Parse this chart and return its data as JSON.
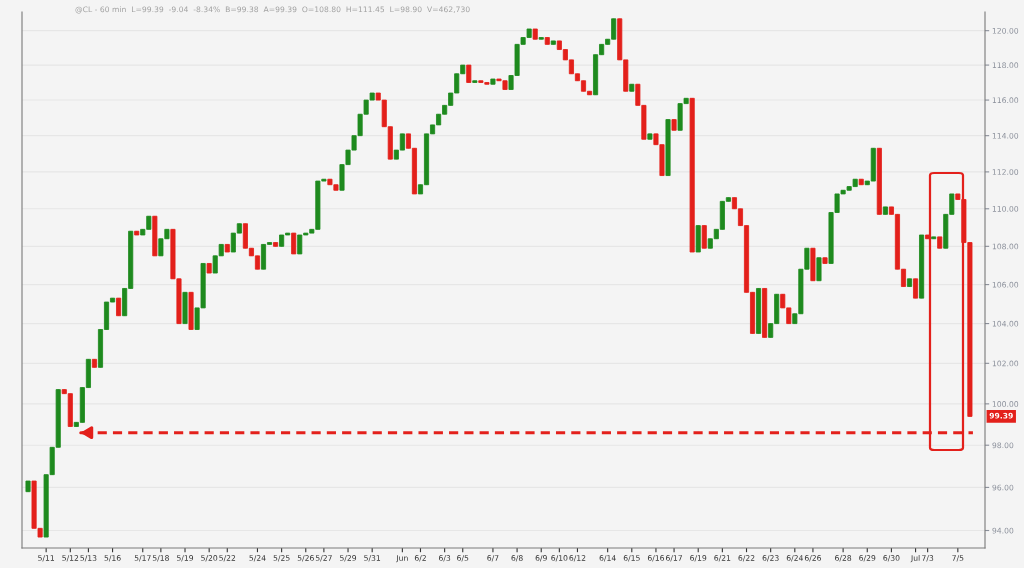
{
  "chart_data": {
    "type": "candlestick",
    "subtitle": "@CL - 60 min  L=99.39  -9.04  -8.34%  B=99.38  A=99.39  O=108.80  H=111.45  L=98.90  V=462,730",
    "categories": [
      null,
      null,
      null,
      "5/11",
      null,
      null,
      null,
      "5/12",
      null,
      null,
      "5/13",
      null,
      null,
      null,
      "5/16",
      null,
      null,
      null,
      null,
      "5/17",
      null,
      null,
      "5/18",
      null,
      null,
      null,
      "5/19",
      null,
      null,
      null,
      "5/20",
      null,
      null,
      "5/22",
      null,
      null,
      null,
      null,
      "5/24",
      null,
      null,
      null,
      "5/25",
      null,
      null,
      null,
      "5/26",
      null,
      null,
      "5/27",
      null,
      null,
      null,
      "5/29",
      null,
      null,
      null,
      "5/31",
      null,
      null,
      null,
      null,
      "Jun",
      null,
      null,
      "6/2",
      null,
      null,
      null,
      "6/3",
      null,
      null,
      "6/5",
      null,
      null,
      null,
      null,
      "6/7",
      null,
      null,
      null,
      "6/8",
      null,
      null,
      null,
      "6/9",
      null,
      null,
      "6/10",
      null,
      null,
      "6/12",
      null,
      null,
      null,
      null,
      "6/14",
      null,
      null,
      null,
      "6/15",
      null,
      null,
      null,
      "6/16",
      null,
      null,
      "6/17",
      null,
      null,
      null,
      "6/19",
      null,
      null,
      null,
      "6/21",
      null,
      null,
      null,
      "6/22",
      null,
      null,
      null,
      "6/23",
      null,
      null,
      null,
      "6/24",
      null,
      null,
      "6/26",
      null,
      null,
      null,
      null,
      "6/28",
      null,
      null,
      null,
      "6/29",
      null,
      null,
      null,
      "6/30",
      null,
      null,
      null,
      "Jul",
      null,
      "7/3",
      null,
      null,
      null,
      null,
      "7/5",
      null,
      null
    ],
    "ohlc": [
      [
        95.8,
        96.3,
        95.8,
        96.3
      ],
      [
        96.3,
        96.3,
        94.1,
        94.1
      ],
      [
        94.1,
        94.1,
        93.7,
        93.7
      ],
      [
        93.7,
        96.6,
        93.7,
        96.6
      ],
      [
        96.6,
        97.9,
        96.6,
        97.9
      ],
      [
        97.9,
        100.7,
        97.9,
        100.7
      ],
      [
        100.7,
        100.7,
        100.5,
        100.5
      ],
      [
        100.5,
        100.5,
        98.9,
        98.9
      ],
      [
        98.9,
        99.1,
        98.9,
        99.1
      ],
      [
        99.1,
        100.8,
        99.1,
        100.8
      ],
      [
        100.8,
        102.2,
        100.8,
        102.2
      ],
      [
        102.2,
        102.2,
        101.8,
        101.8
      ],
      [
        101.8,
        103.7,
        101.8,
        103.7
      ],
      [
        103.7,
        105.1,
        103.7,
        105.1
      ],
      [
        105.1,
        105.3,
        105.1,
        105.3
      ],
      [
        105.3,
        105.3,
        104.4,
        104.4
      ],
      [
        104.4,
        105.8,
        104.4,
        105.8
      ],
      [
        105.8,
        108.8,
        105.8,
        108.8
      ],
      [
        108.8,
        108.8,
        108.6,
        108.6
      ],
      [
        108.6,
        108.9,
        108.6,
        108.9
      ],
      [
        108.9,
        109.6,
        108.9,
        109.6
      ],
      [
        109.6,
        109.6,
        107.5,
        107.5
      ],
      [
        107.5,
        108.4,
        107.5,
        108.4
      ],
      [
        108.4,
        108.9,
        108.4,
        108.9
      ],
      [
        108.9,
        108.9,
        106.3,
        106.3
      ],
      [
        106.3,
        106.3,
        104.0,
        104.0
      ],
      [
        104.0,
        105.6,
        104.0,
        105.6
      ],
      [
        105.6,
        105.6,
        103.7,
        103.7
      ],
      [
        103.7,
        104.8,
        103.7,
        104.8
      ],
      [
        104.8,
        107.1,
        104.8,
        107.1
      ],
      [
        107.1,
        107.1,
        106.6,
        106.6
      ],
      [
        106.6,
        107.5,
        106.6,
        107.5
      ],
      [
        107.5,
        108.1,
        107.5,
        108.1
      ],
      [
        108.1,
        108.1,
        107.7,
        107.7
      ],
      [
        107.7,
        108.7,
        107.7,
        108.7
      ],
      [
        108.7,
        109.2,
        108.7,
        109.2
      ],
      [
        109.2,
        109.2,
        107.9,
        107.9
      ],
      [
        107.9,
        107.9,
        107.5,
        107.5
      ],
      [
        107.5,
        107.5,
        106.8,
        106.8
      ],
      [
        106.8,
        108.1,
        106.8,
        108.1
      ],
      [
        108.1,
        108.2,
        108.1,
        108.2
      ],
      [
        108.2,
        108.2,
        108.0,
        108.0
      ],
      [
        108.0,
        108.6,
        108.0,
        108.6
      ],
      [
        108.6,
        108.7,
        108.6,
        108.7
      ],
      [
        108.7,
        108.7,
        107.6,
        107.6
      ],
      [
        107.6,
        108.6,
        107.6,
        108.6
      ],
      [
        108.6,
        108.7,
        108.6,
        108.7
      ],
      [
        108.7,
        108.9,
        108.7,
        108.9
      ],
      [
        108.9,
        111.5,
        108.9,
        111.5
      ],
      [
        111.5,
        111.6,
        111.5,
        111.6
      ],
      [
        111.6,
        111.6,
        111.3,
        111.3
      ],
      [
        111.3,
        111.3,
        111.0,
        111.0
      ],
      [
        111.0,
        112.4,
        111.0,
        112.4
      ],
      [
        112.4,
        113.2,
        112.4,
        113.2
      ],
      [
        113.2,
        114.0,
        113.2,
        114.0
      ],
      [
        114.0,
        115.2,
        114.0,
        115.2
      ],
      [
        115.2,
        116.0,
        115.2,
        116.0
      ],
      [
        116.0,
        116.4,
        116.0,
        116.4
      ],
      [
        116.4,
        116.4,
        116.0,
        116.0
      ],
      [
        116.0,
        116.0,
        114.5,
        114.5
      ],
      [
        114.5,
        114.5,
        112.7,
        112.7
      ],
      [
        112.7,
        113.2,
        112.7,
        113.2
      ],
      [
        113.2,
        114.1,
        113.2,
        114.1
      ],
      [
        114.1,
        114.1,
        113.3,
        113.3
      ],
      [
        113.3,
        113.3,
        110.8,
        110.8
      ],
      [
        110.8,
        111.3,
        110.8,
        111.3
      ],
      [
        111.3,
        114.1,
        111.3,
        114.1
      ],
      [
        114.1,
        114.6,
        114.1,
        114.6
      ],
      [
        114.6,
        115.2,
        114.6,
        115.2
      ],
      [
        115.2,
        115.7,
        115.2,
        115.7
      ],
      [
        115.7,
        116.4,
        115.7,
        116.4
      ],
      [
        116.4,
        117.5,
        116.4,
        117.5
      ],
      [
        117.5,
        118.0,
        117.5,
        118.0
      ],
      [
        118.0,
        118.0,
        117.0,
        117.0
      ],
      [
        117.0,
        117.1,
        117.0,
        117.1
      ],
      [
        117.1,
        117.1,
        117.0,
        117.0
      ],
      [
        117.0,
        117.0,
        116.9,
        116.9
      ],
      [
        116.9,
        117.2,
        116.9,
        117.2
      ],
      [
        117.2,
        117.2,
        117.1,
        117.1
      ],
      [
        117.1,
        117.1,
        116.6,
        116.6
      ],
      [
        116.6,
        117.4,
        116.6,
        117.4
      ],
      [
        117.4,
        119.2,
        117.4,
        119.2
      ],
      [
        119.2,
        119.6,
        119.2,
        119.6
      ],
      [
        119.6,
        120.1,
        119.6,
        120.1
      ],
      [
        120.1,
        120.1,
        119.5,
        119.5
      ],
      [
        119.5,
        119.6,
        119.5,
        119.6
      ],
      [
        119.6,
        119.6,
        119.2,
        119.2
      ],
      [
        119.2,
        119.4,
        119.2,
        119.4
      ],
      [
        119.4,
        119.4,
        118.9,
        118.9
      ],
      [
        118.9,
        118.9,
        118.3,
        118.3
      ],
      [
        118.3,
        118.3,
        117.5,
        117.5
      ],
      [
        117.5,
        117.5,
        117.1,
        117.1
      ],
      [
        117.1,
        117.1,
        116.5,
        116.5
      ],
      [
        116.5,
        116.5,
        116.3,
        116.3
      ],
      [
        116.3,
        118.6,
        116.3,
        118.6
      ],
      [
        118.6,
        119.2,
        118.6,
        119.2
      ],
      [
        119.2,
        119.5,
        119.2,
        119.5
      ],
      [
        119.5,
        120.7,
        119.5,
        120.7
      ],
      [
        120.7,
        120.7,
        118.3,
        118.3
      ],
      [
        118.3,
        118.3,
        116.5,
        116.5
      ],
      [
        116.5,
        116.9,
        116.5,
        116.9
      ],
      [
        116.9,
        116.9,
        115.7,
        115.7
      ],
      [
        115.7,
        115.7,
        113.8,
        113.8
      ],
      [
        113.8,
        114.1,
        113.8,
        114.1
      ],
      [
        114.1,
        114.1,
        113.5,
        113.5
      ],
      [
        113.5,
        113.5,
        111.8,
        111.8
      ],
      [
        111.8,
        114.9,
        111.8,
        114.9
      ],
      [
        114.9,
        114.9,
        114.3,
        114.3
      ],
      [
        114.3,
        115.8,
        114.3,
        115.8
      ],
      [
        115.8,
        116.1,
        115.8,
        116.1
      ],
      [
        116.1,
        116.1,
        107.7,
        107.7
      ],
      [
        107.7,
        109.1,
        107.7,
        109.1
      ],
      [
        109.1,
        109.1,
        107.9,
        107.9
      ],
      [
        107.9,
        108.4,
        107.9,
        108.4
      ],
      [
        108.4,
        108.9,
        108.4,
        108.9
      ],
      [
        108.9,
        110.4,
        108.9,
        110.4
      ],
      [
        110.4,
        110.6,
        110.4,
        110.6
      ],
      [
        110.6,
        110.6,
        110.0,
        110.0
      ],
      [
        110.0,
        110.0,
        109.1,
        109.1
      ],
      [
        109.1,
        109.1,
        105.6,
        105.6
      ],
      [
        105.6,
        105.6,
        103.5,
        103.5
      ],
      [
        103.5,
        105.8,
        103.5,
        105.8
      ],
      [
        105.8,
        105.8,
        103.3,
        103.3
      ],
      [
        103.3,
        104.0,
        103.3,
        104.0
      ],
      [
        104.0,
        105.5,
        104.0,
        105.5
      ],
      [
        105.5,
        105.5,
        104.8,
        104.8
      ],
      [
        104.8,
        104.8,
        104.0,
        104.0
      ],
      [
        104.0,
        104.5,
        104.0,
        104.5
      ],
      [
        104.5,
        106.8,
        104.5,
        106.8
      ],
      [
        106.8,
        107.9,
        106.8,
        107.9
      ],
      [
        107.9,
        107.9,
        106.2,
        106.2
      ],
      [
        106.2,
        107.4,
        106.2,
        107.4
      ],
      [
        107.4,
        107.4,
        107.1,
        107.1
      ],
      [
        107.1,
        109.8,
        107.1,
        109.8
      ],
      [
        109.8,
        110.8,
        109.8,
        110.8
      ],
      [
        110.8,
        111.0,
        110.8,
        111.0
      ],
      [
        111.0,
        111.2,
        111.0,
        111.2
      ],
      [
        111.2,
        111.6,
        111.2,
        111.6
      ],
      [
        111.6,
        111.6,
        111.3,
        111.3
      ],
      [
        111.3,
        111.5,
        111.3,
        111.5
      ],
      [
        111.5,
        113.3,
        111.5,
        113.3
      ],
      [
        113.3,
        113.3,
        109.7,
        109.7
      ],
      [
        109.7,
        110.1,
        109.7,
        110.1
      ],
      [
        110.1,
        110.1,
        109.7,
        109.7
      ],
      [
        109.7,
        109.7,
        106.8,
        106.8
      ],
      [
        106.8,
        106.8,
        105.9,
        105.9
      ],
      [
        105.9,
        106.3,
        105.9,
        106.3
      ],
      [
        106.3,
        106.3,
        105.3,
        105.3
      ],
      [
        105.3,
        108.6,
        105.3,
        108.6
      ],
      [
        108.6,
        108.6,
        108.4,
        108.4
      ],
      [
        108.4,
        108.5,
        108.4,
        108.5
      ],
      [
        108.5,
        108.5,
        107.9,
        107.9
      ],
      [
        107.9,
        109.7,
        107.9,
        109.7
      ],
      [
        109.7,
        110.8,
        109.7,
        110.8
      ],
      [
        110.8,
        110.8,
        110.5,
        110.5
      ],
      [
        110.5,
        110.5,
        108.2,
        108.2
      ],
      [
        108.2,
        108.2,
        99.39,
        99.39
      ]
    ],
    "log": true,
    "ylim": [
      93.2,
      121.1
    ],
    "yticks": [
      {
        "value": 94,
        "label": "94.00"
      },
      {
        "value": 96,
        "label": "96.00"
      },
      {
        "value": 98,
        "label": "98.00"
      },
      {
        "value": 100,
        "label": "100.00"
      },
      {
        "value": 102,
        "label": "102.00"
      },
      {
        "value": 104,
        "label": "104.00"
      },
      {
        "value": 106,
        "label": "106.00"
      },
      {
        "value": 108,
        "label": "108.00"
      },
      {
        "value": 110,
        "label": "110.00"
      },
      {
        "value": 112,
        "label": "112.00"
      },
      {
        "value": 114,
        "label": "114.00"
      },
      {
        "value": 116,
        "label": "116.00"
      },
      {
        "value": 118,
        "label": "118.00"
      },
      {
        "value": 120,
        "label": "120.00"
      }
    ],
    "grid": "y",
    "ref_lines": [
      {
        "axis": "y",
        "value": 98.6,
        "color": "#e3201b",
        "line_style": "dashed"
      }
    ],
    "annotations": [
      "99.39"
    ]
  }
}
